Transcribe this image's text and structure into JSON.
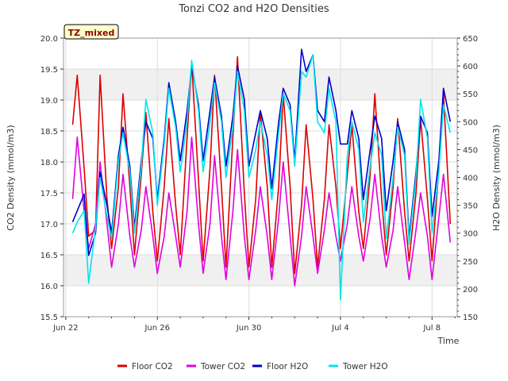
{
  "chart_data": {
    "type": "line",
    "title": "Tonzi CO2 and H2O Densities",
    "xlabel": "Time",
    "ylabel_left": "CO2 Density (mmol/m3)",
    "ylabel_right": "H2O Density (mmol/m3)",
    "annotation": "TZ_mixed",
    "x_ticks": [
      "Jun 22",
      "Jun 26",
      "Jun 30",
      "Jul 4",
      "Jul 8"
    ],
    "x_tick_days": [
      0,
      4,
      8,
      12,
      16
    ],
    "x_range_days": [
      -0.1,
      17.1
    ],
    "y_left": {
      "lim": [
        15.5,
        20.0
      ],
      "ticks": [
        "15.5",
        "16.0",
        "16.5",
        "17.0",
        "17.5",
        "18.0",
        "18.5",
        "19.0",
        "19.5",
        "20.0"
      ]
    },
    "y_right": {
      "lim": [
        150,
        650
      ],
      "ticks": [
        "150",
        "200",
        "250",
        "300",
        "350",
        "400",
        "450",
        "500",
        "550",
        "600",
        "650"
      ]
    },
    "grid": true,
    "legend_position": "bottom",
    "series": [
      {
        "name": "Floor CO2",
        "axis": "left",
        "color": "#dd0000",
        "x": [
          0.3,
          0.5,
          0.8,
          1.0,
          1.3,
          1.5,
          1.8,
          2.0,
          2.3,
          2.5,
          2.8,
          3.0,
          3.3,
          3.5,
          3.8,
          4.0,
          4.3,
          4.5,
          4.8,
          5.0,
          5.3,
          5.5,
          5.8,
          6.0,
          6.3,
          6.5,
          6.8,
          7.0,
          7.3,
          7.5,
          7.8,
          8.0,
          8.3,
          8.5,
          8.8,
          9.0,
          9.3,
          9.5,
          9.8,
          10.0,
          10.3,
          10.5,
          10.8,
          11.0,
          11.3,
          11.5,
          11.8,
          12.0,
          12.3,
          12.5,
          12.8,
          13.0,
          13.3,
          13.5,
          13.8,
          14.0,
          14.3,
          14.5,
          14.8,
          15.0,
          15.3,
          15.5,
          15.8,
          16.0,
          16.3,
          16.5,
          16.8
        ],
        "y": [
          18.6,
          19.4,
          17.9,
          16.8,
          16.9,
          19.4,
          17.4,
          16.6,
          17.6,
          19.1,
          17.6,
          16.5,
          17.8,
          18.8,
          17.2,
          16.4,
          17.6,
          18.7,
          17.3,
          16.5,
          18.4,
          19.6,
          17.7,
          16.4,
          17.9,
          19.4,
          17.6,
          16.3,
          18.4,
          19.7,
          17.5,
          16.3,
          17.4,
          18.8,
          17.6,
          16.3,
          17.6,
          19.1,
          17.6,
          16.2,
          17.3,
          18.6,
          17.4,
          16.3,
          17.4,
          18.6,
          17.6,
          16.6,
          17.8,
          18.6,
          17.2,
          16.6,
          17.8,
          19.1,
          17.4,
          16.5,
          17.6,
          18.7,
          17.2,
          16.4,
          17.5,
          18.7,
          17.4,
          16.4,
          17.9,
          19.1,
          17.0
        ]
      },
      {
        "name": "Tower CO2",
        "axis": "left",
        "color": "#e000e0",
        "x": [
          0.3,
          0.5,
          0.8,
          1.0,
          1.3,
          1.5,
          1.8,
          2.0,
          2.3,
          2.5,
          2.8,
          3.0,
          3.3,
          3.5,
          3.8,
          4.0,
          4.3,
          4.5,
          4.8,
          5.0,
          5.3,
          5.5,
          5.8,
          6.0,
          6.3,
          6.5,
          6.8,
          7.0,
          7.3,
          7.5,
          7.8,
          8.0,
          8.3,
          8.5,
          8.8,
          9.0,
          9.3,
          9.5,
          9.8,
          10.0,
          10.3,
          10.5,
          10.8,
          11.0,
          11.3,
          11.5,
          11.8,
          12.0,
          12.3,
          12.5,
          12.8,
          13.0,
          13.3,
          13.5,
          13.8,
          14.0,
          14.3,
          14.5,
          14.8,
          15.0,
          15.3,
          15.5,
          15.8,
          16.0,
          16.3,
          16.5,
          16.8
        ],
        "y": [
          17.4,
          18.4,
          17.2,
          16.6,
          17.0,
          18.0,
          17.0,
          16.3,
          17.0,
          17.8,
          16.8,
          16.3,
          16.9,
          17.6,
          16.8,
          16.2,
          16.8,
          17.5,
          16.8,
          16.3,
          17.2,
          18.4,
          17.0,
          16.2,
          17.0,
          18.1,
          16.8,
          16.1,
          17.2,
          18.2,
          16.8,
          16.1,
          16.9,
          17.6,
          16.8,
          16.1,
          17.1,
          18.0,
          16.8,
          16.0,
          16.8,
          17.6,
          16.8,
          16.2,
          16.9,
          17.5,
          16.8,
          16.4,
          17.0,
          17.6,
          16.8,
          16.4,
          17.1,
          17.8,
          16.8,
          16.3,
          16.9,
          17.6,
          16.7,
          16.1,
          16.9,
          17.5,
          16.8,
          16.1,
          17.1,
          17.8,
          16.7
        ]
      },
      {
        "name": "Floor H2O",
        "axis": "right",
        "color": "#0000cc",
        "x": [
          0.3,
          0.5,
          0.8,
          1.0,
          1.3,
          1.5,
          1.8,
          2.0,
          2.3,
          2.5,
          2.8,
          3.0,
          3.3,
          3.5,
          3.8,
          4.0,
          4.3,
          4.5,
          4.8,
          5.0,
          5.3,
          5.5,
          5.8,
          6.0,
          6.3,
          6.5,
          6.8,
          7.0,
          7.3,
          7.5,
          7.8,
          8.0,
          8.3,
          8.5,
          8.8,
          9.0,
          9.3,
          9.5,
          9.8,
          10.0,
          10.3,
          10.5,
          10.8,
          11.0,
          11.3,
          11.5,
          11.8,
          12.0,
          12.3,
          12.5,
          12.8,
          13.0,
          13.3,
          13.5,
          13.8,
          14.0,
          14.3,
          14.5,
          14.8,
          15.0,
          15.3,
          15.5,
          15.8,
          16.0,
          16.3,
          16.5,
          16.8
        ],
        "y": [
          320,
          340,
          370,
          260,
          300,
          410,
          350,
          300,
          440,
          490,
          420,
          310,
          430,
          500,
          470,
          360,
          470,
          570,
          500,
          430,
          520,
          600,
          530,
          430,
          520,
          580,
          510,
          420,
          510,
          600,
          540,
          420,
          480,
          520,
          470,
          380,
          500,
          560,
          530,
          430,
          630,
          590,
          620,
          520,
          500,
          580,
          520,
          460,
          460,
          520,
          470,
          360,
          450,
          510,
          470,
          340,
          430,
          500,
          450,
          290,
          410,
          510,
          480,
          330,
          430,
          560,
          500
        ]
      },
      {
        "name": "Tower H2O",
        "axis": "right",
        "color": "#00e5ee",
        "x": [
          0.3,
          0.5,
          0.8,
          1.0,
          1.3,
          1.5,
          1.8,
          2.0,
          2.3,
          2.5,
          2.8,
          3.0,
          3.3,
          3.5,
          3.8,
          4.0,
          4.3,
          4.5,
          4.8,
          5.0,
          5.3,
          5.5,
          5.8,
          6.0,
          6.3,
          6.5,
          6.8,
          7.0,
          7.3,
          7.5,
          7.8,
          8.0,
          8.3,
          8.5,
          8.8,
          9.0,
          9.3,
          9.5,
          9.8,
          10.0,
          10.3,
          10.5,
          10.8,
          11.0,
          11.3,
          11.5,
          11.8,
          12.0,
          12.3,
          12.5,
          12.8,
          13.0,
          13.3,
          13.5,
          13.8,
          14.0,
          14.3,
          14.5,
          14.8,
          15.0,
          15.3,
          15.5,
          15.8,
          16.0,
          16.3,
          16.5,
          16.8
        ],
        "y": [
          300,
          320,
          340,
          210,
          310,
          400,
          330,
          290,
          430,
          480,
          410,
          300,
          420,
          540,
          480,
          350,
          460,
          560,
          490,
          410,
          500,
          610,
          520,
          410,
          500,
          570,
          500,
          400,
          490,
          590,
          520,
          400,
          450,
          500,
          440,
          360,
          480,
          550,
          520,
          420,
          590,
          580,
          620,
          500,
          480,
          560,
          500,
          180,
          440,
          500,
          450,
          320,
          420,
          480,
          440,
          290,
          400,
          490,
          440,
          280,
          400,
          540,
          470,
          300,
          410,
          530,
          480
        ]
      }
    ]
  }
}
